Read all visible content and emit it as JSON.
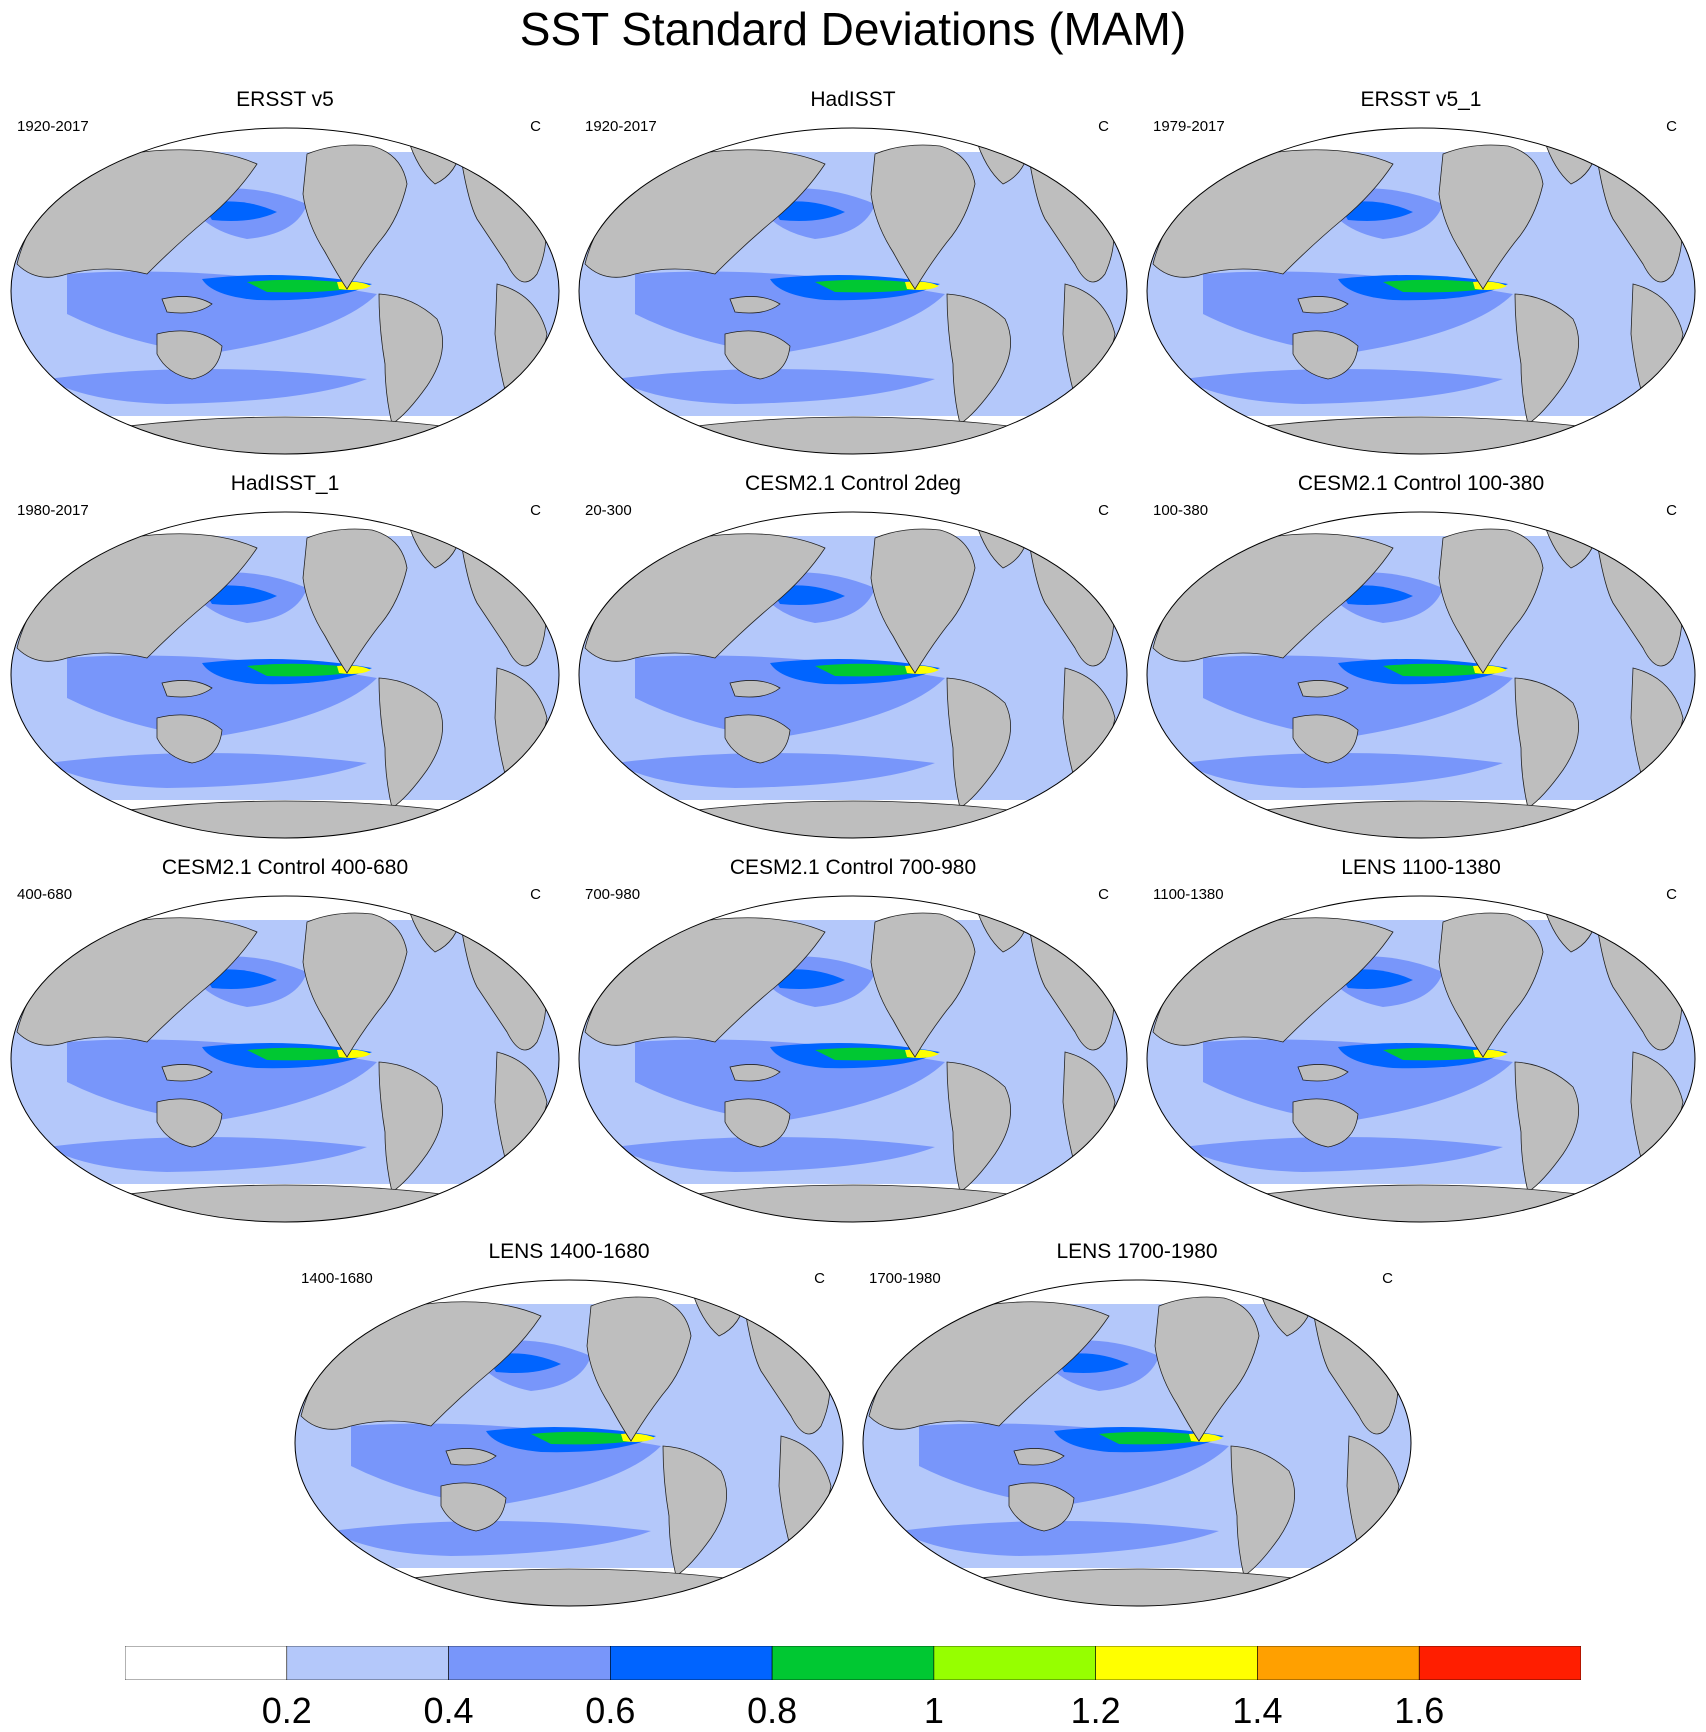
{
  "title": "SST Standard Deviations (MAM)",
  "unit_label": "C",
  "panels": [
    {
      "title": "ERSST v5",
      "period": "1920-2017"
    },
    {
      "title": "HadISST",
      "period": "1920-2017"
    },
    {
      "title": "ERSST v5_1",
      "period": "1979-2017"
    },
    {
      "title": "HadISST_1",
      "period": "1980-2017"
    },
    {
      "title": "CESM2.1 Control 2deg",
      "period": "20-300"
    },
    {
      "title": "CESM2.1 Control 100-380",
      "period": "100-380"
    },
    {
      "title": "CESM2.1 Control 400-680",
      "period": "400-680"
    },
    {
      "title": "CESM2.1 Control 700-980",
      "period": "700-980"
    },
    {
      "title": "LENS 1100-1380",
      "period": "1100-1380"
    },
    {
      "title": "LENS 1400-1680",
      "period": "1400-1680"
    },
    {
      "title": "LENS 1700-1980",
      "period": "1700-1980"
    }
  ],
  "colorbar": {
    "labels": [
      "0.2",
      "0.4",
      "0.6",
      "0.8",
      "1",
      "1.2",
      "1.4",
      "1.6"
    ],
    "colors": [
      "#ffffff",
      "#b4c8fa",
      "#7896fa",
      "#0064ff",
      "#00c832",
      "#96ff00",
      "#ffff00",
      "#ffa000",
      "#ff1e00"
    ]
  },
  "colors": {
    "land": "#bebebe",
    "coast": "#222222"
  }
}
